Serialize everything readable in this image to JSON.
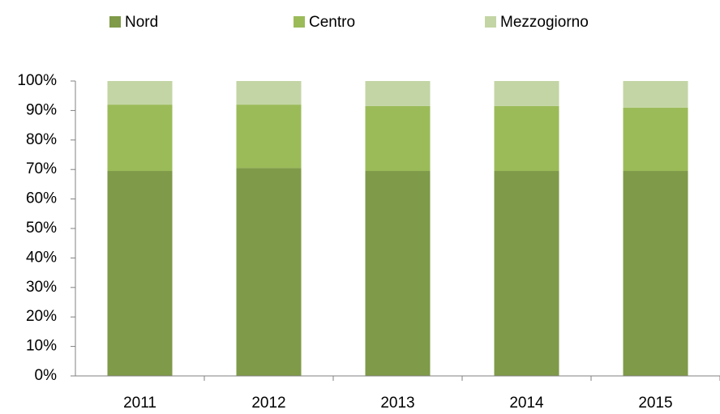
{
  "chart_data": {
    "type": "stacked_bar",
    "categories": [
      "2011",
      "2012",
      "2013",
      "2014",
      "2015"
    ],
    "series": [
      {
        "name": "Nord",
        "color": "#7f9a48",
        "values": [
          69.5,
          70.5,
          69.5,
          69.5,
          69.5
        ]
      },
      {
        "name": "Centro",
        "color": "#9bbb59",
        "values": [
          22.5,
          21.5,
          22,
          22,
          21.5
        ]
      },
      {
        "name": "Mezzogiorno",
        "color": "#c3d5a4",
        "values": [
          8,
          8,
          8.5,
          8.5,
          9
        ]
      }
    ],
    "ylim": [
      0,
      100
    ],
    "yticks": [
      {
        "value": 0,
        "label": "0%"
      },
      {
        "value": 10,
        "label": "10%"
      },
      {
        "value": 20,
        "label": "20%"
      },
      {
        "value": 30,
        "label": "30%"
      },
      {
        "value": 40,
        "label": "40%"
      },
      {
        "value": 50,
        "label": "50%"
      },
      {
        "value": 60,
        "label": "60%"
      },
      {
        "value": 70,
        "label": "70%"
      },
      {
        "value": 80,
        "label": "80%"
      },
      {
        "value": 90,
        "label": "90%"
      },
      {
        "value": 100,
        "label": "100%"
      }
    ],
    "grid": false,
    "legend": "top"
  }
}
